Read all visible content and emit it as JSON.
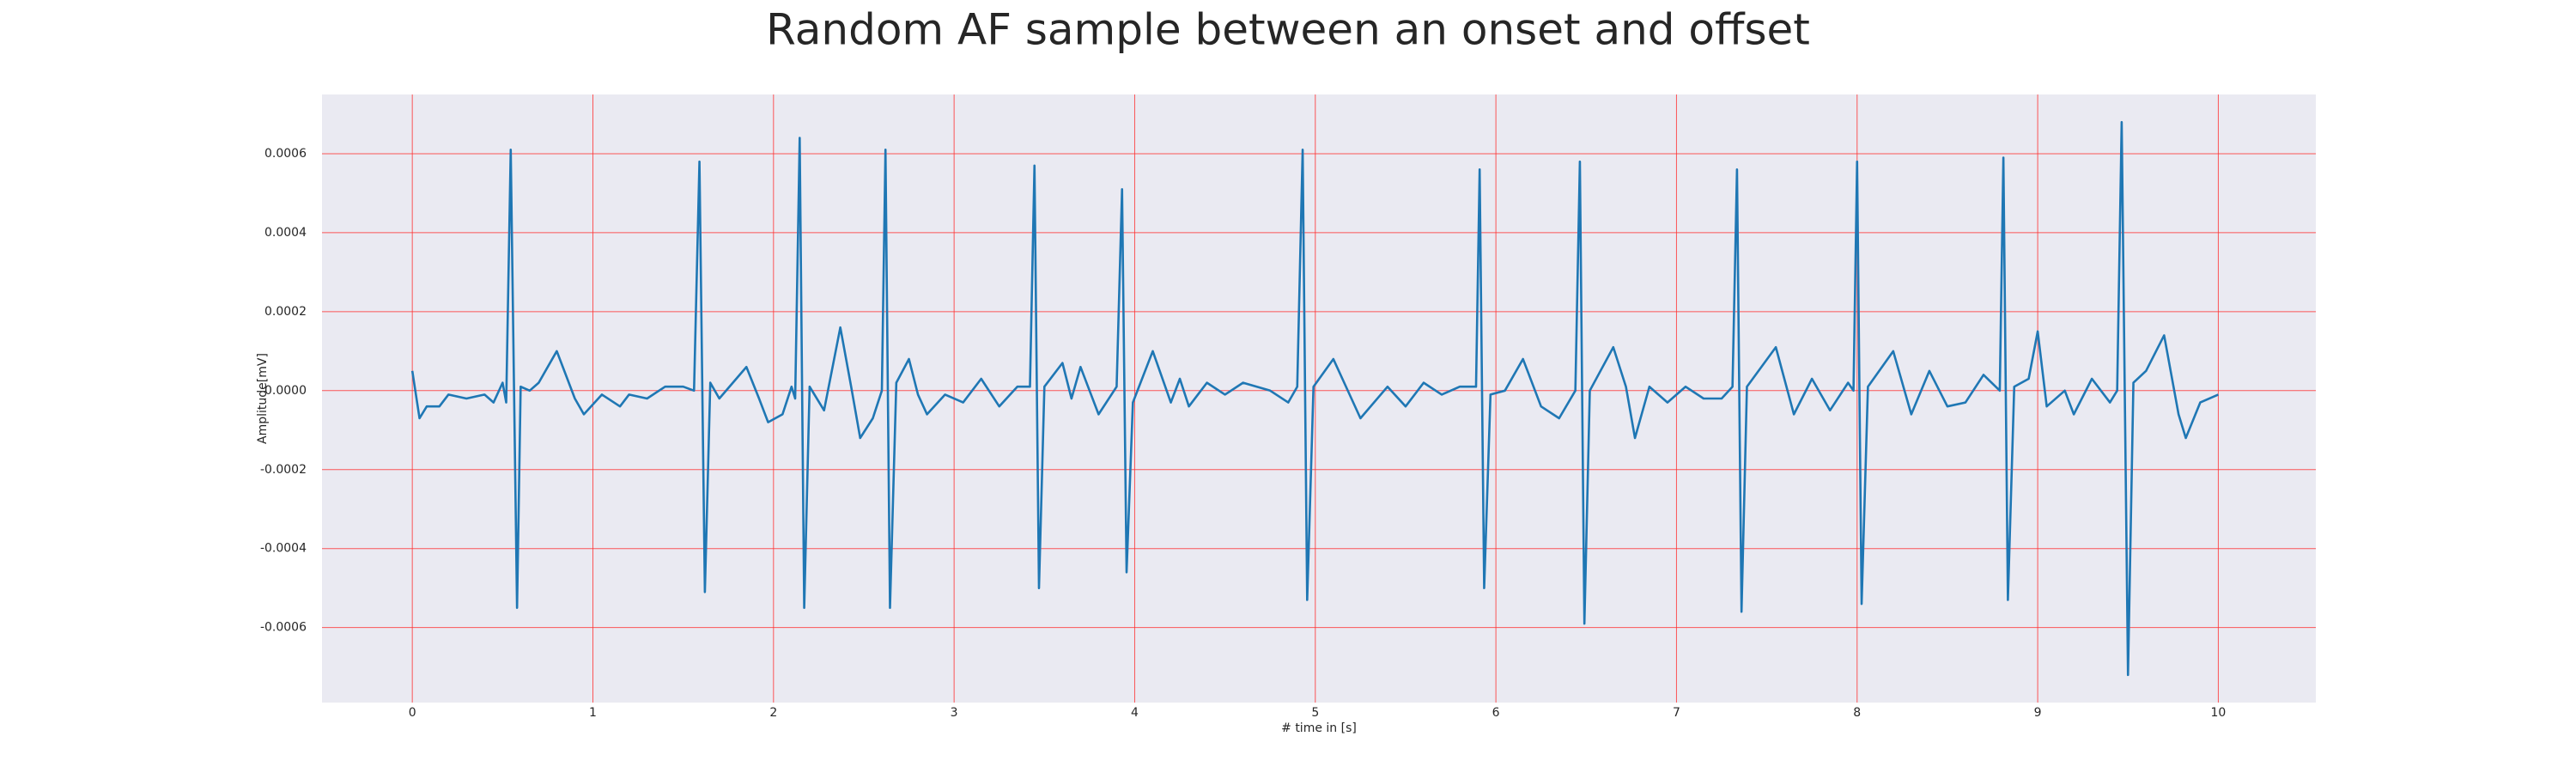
{
  "chart_data": {
    "type": "line",
    "title": "Random AF sample between an onset and offset",
    "x_label": "# time in [s]",
    "y_label": "Amplitude[mV]",
    "x": [
      0.0,
      0.04,
      0.08,
      0.15,
      0.2,
      0.3,
      0.4,
      0.45,
      0.5,
      0.52,
      0.545,
      0.58,
      0.6,
      0.65,
      0.7,
      0.8,
      0.9,
      0.95,
      1.05,
      1.15,
      1.2,
      1.3,
      1.4,
      1.5,
      1.56,
      1.59,
      1.62,
      1.65,
      1.7,
      1.85,
      1.92,
      1.97,
      2.05,
      2.1,
      2.12,
      2.145,
      2.17,
      2.2,
      2.28,
      2.37,
      2.43,
      2.48,
      2.55,
      2.6,
      2.62,
      2.645,
      2.68,
      2.75,
      2.8,
      2.85,
      2.95,
      3.05,
      3.15,
      3.25,
      3.35,
      3.42,
      3.445,
      3.47,
      3.5,
      3.6,
      3.65,
      3.7,
      3.8,
      3.9,
      3.93,
      3.955,
      3.99,
      4.1,
      4.2,
      4.25,
      4.3,
      4.4,
      4.5,
      4.6,
      4.75,
      4.85,
      4.9,
      4.93,
      4.955,
      4.99,
      5.1,
      5.15,
      5.25,
      5.4,
      5.5,
      5.6,
      5.7,
      5.8,
      5.89,
      5.91,
      5.935,
      5.97,
      6.05,
      6.15,
      6.25,
      6.35,
      6.44,
      6.465,
      6.49,
      6.52,
      6.65,
      6.72,
      6.77,
      6.85,
      6.95,
      7.05,
      7.15,
      7.25,
      7.31,
      7.335,
      7.36,
      7.39,
      7.55,
      7.65,
      7.75,
      7.85,
      7.95,
      7.98,
      8.0,
      8.025,
      8.06,
      8.2,
      8.3,
      8.4,
      8.5,
      8.6,
      8.7,
      8.79,
      8.81,
      8.835,
      8.87,
      8.95,
      9.0,
      9.05,
      9.15,
      9.2,
      9.3,
      9.4,
      9.44,
      9.465,
      9.5,
      9.53,
      9.6,
      9.7,
      9.78,
      9.82,
      9.9,
      10.0
    ],
    "series": [
      {
        "color": "#1f77b4",
        "values": [
          5e-05,
          -7e-05,
          -4e-05,
          -4e-05,
          -1e-05,
          -2e-05,
          -1e-05,
          -3e-05,
          2e-05,
          -3e-05,
          0.00061,
          -0.00055,
          1e-05,
          0.0,
          2e-05,
          0.0001,
          -2e-05,
          -6e-05,
          -1e-05,
          -4e-05,
          -1e-05,
          -2e-05,
          1e-05,
          1e-05,
          0.0,
          0.00058,
          -0.00051,
          2e-05,
          -2e-05,
          6e-05,
          -2e-05,
          -8e-05,
          -6e-05,
          1e-05,
          -2e-05,
          0.00064,
          -0.00055,
          1e-05,
          -5e-05,
          0.00016,
          1e-05,
          -0.00012,
          -7e-05,
          0.0,
          0.00061,
          -0.00055,
          2e-05,
          8e-05,
          -1e-05,
          -6e-05,
          -1e-05,
          -3e-05,
          3e-05,
          -4e-05,
          1e-05,
          1e-05,
          0.00057,
          -0.0005,
          1e-05,
          7e-05,
          -2e-05,
          6e-05,
          -6e-05,
          1e-05,
          0.00051,
          -0.00046,
          -3e-05,
          0.0001,
          -3e-05,
          3e-05,
          -4e-05,
          2e-05,
          -1e-05,
          2e-05,
          0.0,
          -3e-05,
          1e-05,
          0.00061,
          -0.00053,
          1e-05,
          8e-05,
          3e-05,
          -7e-05,
          1e-05,
          -4e-05,
          2e-05,
          -1e-05,
          1e-05,
          1e-05,
          0.00056,
          -0.0005,
          -1e-05,
          0.0,
          8e-05,
          -4e-05,
          -7e-05,
          0.0,
          0.00058,
          -0.00059,
          0.0,
          0.00011,
          1e-05,
          -0.00012,
          1e-05,
          -3e-05,
          1e-05,
          -2e-05,
          -2e-05,
          1e-05,
          0.00056,
          -0.00056,
          1e-05,
          0.00011,
          -6e-05,
          3e-05,
          -5e-05,
          2e-05,
          0.0,
          0.00058,
          -0.00054,
          1e-05,
          0.0001,
          -6e-05,
          5e-05,
          -4e-05,
          -3e-05,
          4e-05,
          0.0,
          0.00059,
          -0.00053,
          1e-05,
          3e-05,
          0.00015,
          -4e-05,
          0.0,
          -6e-05,
          3e-05,
          -3e-05,
          0.0,
          0.00068,
          -0.00072,
          2e-05,
          5e-05,
          0.00014,
          -6e-05,
          -0.00012,
          -3e-05,
          -1e-05
        ]
      }
    ],
    "xlim": [
      -0.5,
      10.54
    ],
    "ylim": [
      -0.00079,
      0.00075
    ],
    "xticks": [
      0,
      1,
      2,
      3,
      4,
      5,
      6,
      7,
      8,
      9,
      10
    ],
    "yticks": [
      -0.0006,
      -0.0004,
      -0.0002,
      {
        "value": 0,
        "label": "0.0000"
      },
      0.0002,
      0.0004,
      0.0006
    ],
    "grid": true,
    "grid_color": "#ff3030",
    "background": "#eaeaf2"
  }
}
